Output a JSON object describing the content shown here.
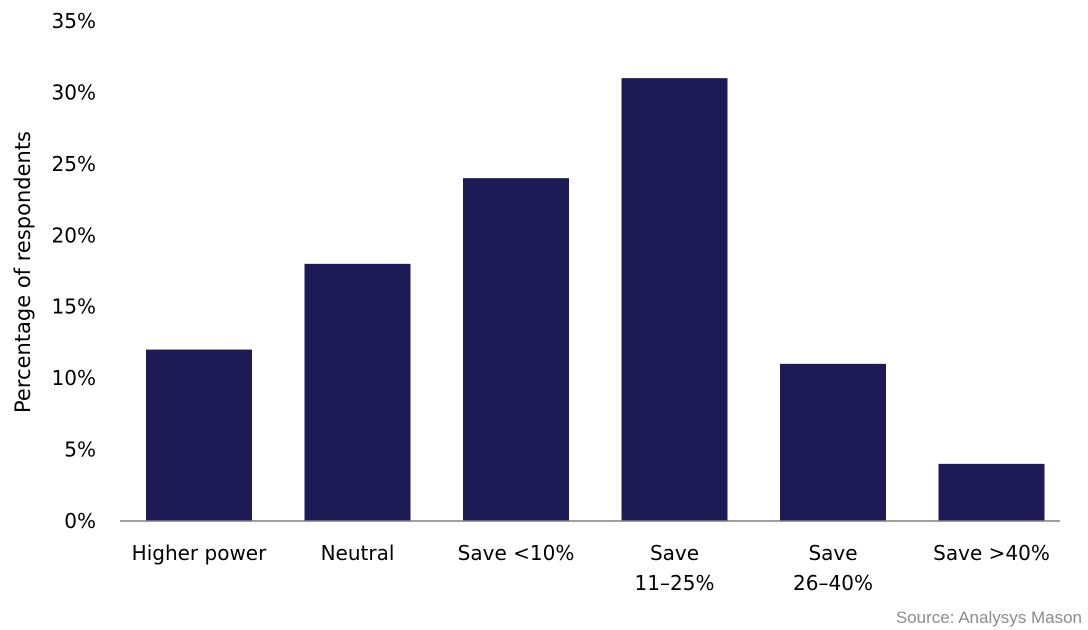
{
  "chart_data": {
    "type": "bar",
    "categories": [
      "Higher power",
      "Neutral",
      "Save <10%",
      "Save 11–25%",
      "Save 26–40%",
      "Save >40%"
    ],
    "category_lines": [
      [
        "Higher power"
      ],
      [
        "Neutral"
      ],
      [
        "Save <10%"
      ],
      [
        "Save",
        "11–25%"
      ],
      [
        "Save",
        "26–40%"
      ],
      [
        "Save >40%"
      ]
    ],
    "values": [
      12,
      18,
      24,
      31,
      11,
      4
    ],
    "ylabel": "Percentage of respondents",
    "xlabel": "",
    "ylim": [
      0,
      35
    ],
    "yticks": [
      0,
      5,
      10,
      15,
      20,
      25,
      30,
      35
    ],
    "ytick_labels": [
      "0%",
      "5%",
      "10%",
      "15%",
      "20%",
      "25%",
      "30%",
      "35%"
    ],
    "grid": false,
    "bar_color": "#1d1a55",
    "source": "Source: Analysys Mason"
  }
}
